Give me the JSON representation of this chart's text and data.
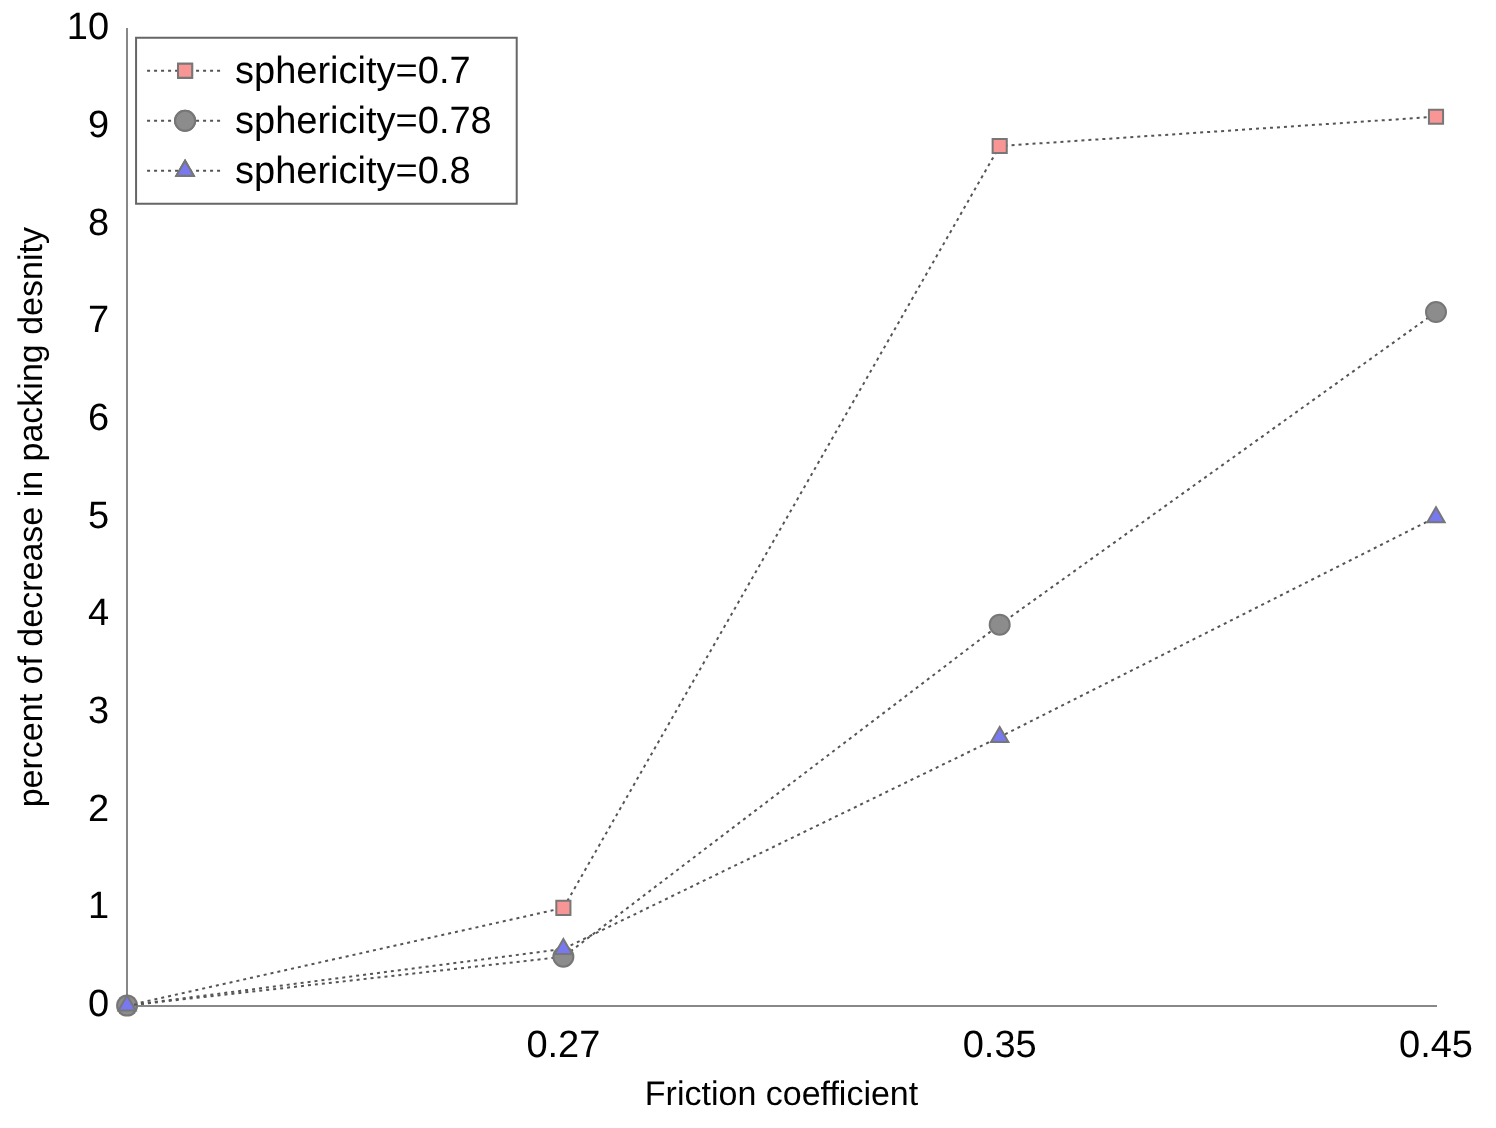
{
  "chart_data": {
    "type": "line",
    "xlabel": "Friction coefficient",
    "ylabel": "percent of decrease in packing desnity",
    "categories": [
      null,
      "0.27",
      "0.35",
      "0.45"
    ],
    "series": [
      {
        "name": "sphericity=0.7",
        "color": "#f89595",
        "marker": "square",
        "values": [
          0,
          1.0,
          8.8,
          9.1
        ]
      },
      {
        "name": "sphericity=0.78",
        "color": "#8c8c8c",
        "marker": "circle",
        "values": [
          0,
          0.5,
          3.9,
          7.1
        ]
      },
      {
        "name": "sphericity=0.8",
        "color": "#7878f0",
        "marker": "triangle",
        "values": [
          0,
          0.58,
          2.75,
          5.0
        ]
      }
    ],
    "ylim": [
      0,
      10
    ],
    "yticks": [
      0,
      1,
      2,
      3,
      4,
      5,
      6,
      7,
      8,
      9,
      10
    ],
    "grid": false,
    "legend": "top left",
    "line_style": "dotted"
  }
}
